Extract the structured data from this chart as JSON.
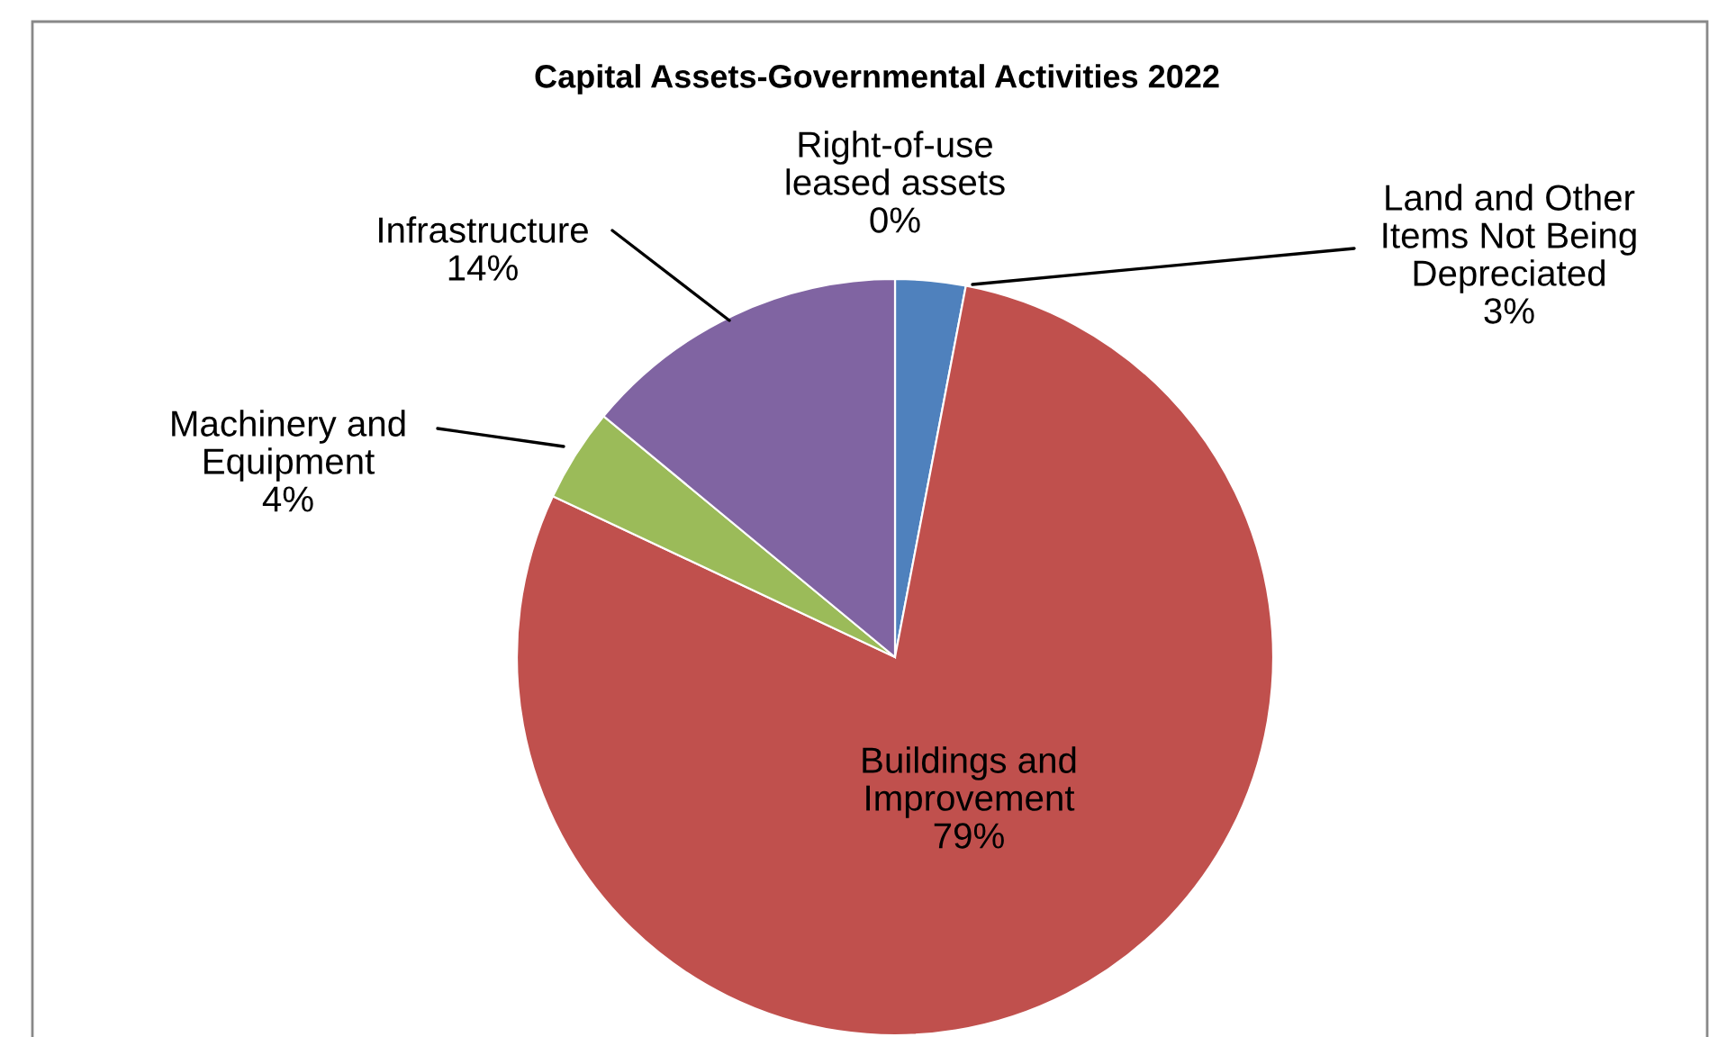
{
  "chart_data": {
    "type": "pie",
    "title": "Capital Assets-Governmental Activities 2022",
    "categories": [
      "Right-of-use leased assets",
      "Land and Other Items Not Being Depreciated",
      "Buildings and Improvement",
      "Machinery and Equipment",
      "Infrastructure"
    ],
    "values": [
      0,
      3,
      79,
      4,
      14
    ],
    "colors": [
      "#4bacc6",
      "#4f81bd",
      "#c0504d",
      "#9bbb59",
      "#8064a2"
    ],
    "value_labels": [
      "0%",
      "3%",
      "79%",
      "4%",
      "14%"
    ],
    "legend": false
  }
}
